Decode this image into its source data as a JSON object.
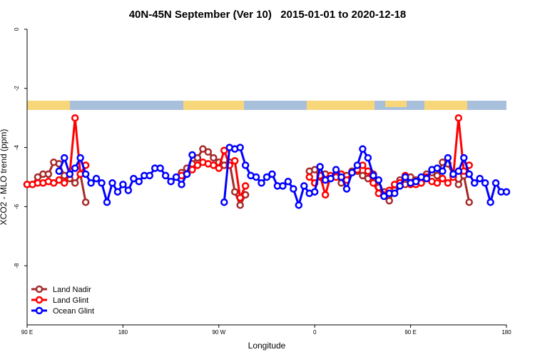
{
  "chart_data": {
    "type": "line",
    "title": "40N-45N September (Ver 10)   2015-01-01 to 2020-12-18",
    "xlabel": "Longitude",
    "ylabel": "XCO2 - MLO trend (ppm)",
    "xlim": [
      90,
      540
    ],
    "ylim": [
      -10,
      0
    ],
    "xticks": [
      {
        "value": 90,
        "label": "90 E"
      },
      {
        "value": 180,
        "label": "180"
      },
      {
        "value": 270,
        "label": "90 W"
      },
      {
        "value": 360,
        "label": "0"
      },
      {
        "value": 450,
        "label": "90 E"
      },
      {
        "value": 540,
        "label": "180"
      }
    ],
    "yticks": [
      0,
      -2,
      -4,
      -6,
      -8
    ],
    "grid": false,
    "legend": "bottom-left",
    "series": [
      {
        "name": "Land Nadir",
        "color": "#a52a2a",
        "x": [
          90,
          95,
          100,
          105,
          110,
          115,
          120,
          125,
          130,
          135,
          140,
          145,
          190,
          235,
          240,
          245,
          250,
          255,
          260,
          265,
          270,
          275,
          280,
          285,
          290,
          295,
          325,
          355,
          360,
          365,
          370,
          375,
          380,
          385,
          390,
          395,
          400,
          405,
          410,
          415,
          420,
          425,
          430,
          435,
          440,
          445,
          450,
          455,
          460,
          465,
          470,
          475,
          480,
          485,
          490,
          495,
          500,
          505
        ],
        "values": [
          -5.25,
          -5.25,
          -5.0,
          -4.9,
          -4.9,
          -4.5,
          -4.55,
          -4.95,
          -5.05,
          -5.2,
          -4.9,
          -5.85,
          null,
          -4.85,
          -4.7,
          -4.55,
          -4.35,
          -4.05,
          -4.15,
          -4.35,
          -4.5,
          -4.6,
          -4.5,
          -5.5,
          -5.95,
          -5.6,
          null,
          -4.8,
          -4.75,
          -5.0,
          -4.9,
          -5.0,
          -4.95,
          -5.2,
          -4.95,
          -4.8,
          -4.8,
          -4.95,
          -5.05,
          -4.9,
          -5.35,
          -5.5,
          -5.8,
          -5.45,
          -5.1,
          -5.25,
          -5.0,
          -5.1,
          -5.2,
          -4.9,
          -4.85,
          -4.95,
          -4.5,
          -4.55,
          -4.95,
          -5.25,
          -4.95,
          -5.85
        ]
      },
      {
        "name": "Land Glint",
        "color": "#ff0000",
        "x": [
          90,
          95,
          100,
          105,
          110,
          115,
          120,
          125,
          130,
          135,
          140,
          145,
          190,
          235,
          240,
          245,
          250,
          255,
          260,
          265,
          270,
          275,
          280,
          285,
          290,
          295,
          325,
          355,
          360,
          365,
          370,
          375,
          380,
          385,
          390,
          395,
          400,
          405,
          410,
          415,
          420,
          425,
          430,
          435,
          440,
          445,
          450,
          455,
          460,
          465,
          470,
          475,
          480,
          485,
          490,
          495,
          500,
          505
        ],
        "values": [
          -5.25,
          -5.25,
          -5.2,
          -5.2,
          -5.15,
          -5.2,
          -5.1,
          -5.2,
          -4.9,
          -3.0,
          -4.9,
          -4.6,
          null,
          -4.95,
          -4.9,
          -4.75,
          -4.6,
          -4.5,
          -4.55,
          -4.6,
          -4.7,
          -4.1,
          -4.6,
          -4.45,
          -5.7,
          -5.3,
          null,
          -5.0,
          -5.2,
          -4.95,
          -5.6,
          -4.95,
          -5.0,
          -4.9,
          -5.1,
          -4.85,
          -4.75,
          -4.6,
          -4.8,
          -5.2,
          -5.55,
          -5.6,
          -5.45,
          -5.25,
          -5.2,
          -4.95,
          -5.25,
          -5.25,
          -5.2,
          -5.0,
          -5.15,
          -5.2,
          -5.05,
          -5.2,
          -5.0,
          -3.0,
          -4.8,
          -4.6
        ]
      },
      {
        "name": "Ocean Glint",
        "color": "#0000ff",
        "x": [
          120,
          125,
          130,
          135,
          140,
          145,
          150,
          155,
          160,
          165,
          170,
          175,
          180,
          185,
          190,
          195,
          200,
          205,
          210,
          215,
          220,
          225,
          230,
          235,
          240,
          245,
          260,
          275,
          280,
          285,
          290,
          295,
          300,
          305,
          310,
          315,
          320,
          325,
          330,
          335,
          340,
          345,
          350,
          355,
          360,
          365,
          370,
          375,
          380,
          385,
          390,
          395,
          400,
          405,
          410,
          415,
          420,
          425,
          430,
          435,
          440,
          445,
          450,
          455,
          460,
          465,
          470,
          475,
          480,
          485,
          490,
          495,
          500,
          505,
          510,
          515,
          520,
          525,
          530,
          535,
          540
        ],
        "values": [
          -4.8,
          -4.35,
          -4.9,
          -4.7,
          -4.35,
          -4.9,
          -5.2,
          -5.05,
          -5.2,
          -5.85,
          -5.2,
          -5.5,
          -5.25,
          -5.45,
          -5.05,
          -5.15,
          -4.95,
          -4.95,
          -4.7,
          -4.7,
          -4.95,
          -5.15,
          -5.0,
          -5.25,
          -4.9,
          -4.25,
          null,
          -5.85,
          -4.0,
          -4.05,
          -4.0,
          -4.6,
          -4.95,
          -5.0,
          -5.2,
          -5.0,
          -4.9,
          -5.3,
          -5.3,
          -5.15,
          -5.4,
          -5.95,
          -5.3,
          -5.55,
          -5.5,
          -4.65,
          -5.1,
          -5.05,
          -4.75,
          -5.0,
          -5.4,
          -4.85,
          -4.6,
          -4.05,
          -4.35,
          -4.95,
          -5.1,
          -5.65,
          -5.55,
          -5.55,
          -5.3,
          -5.0,
          -5.2,
          -5.15,
          -5.0,
          -5.05,
          -4.75,
          -4.7,
          -4.8,
          -4.35,
          -4.9,
          -4.8,
          -4.35,
          -4.9,
          -5.2,
          -5.05,
          -5.2,
          -5.85,
          -5.2,
          -5.5,
          -5.5
        ]
      }
    ]
  }
}
